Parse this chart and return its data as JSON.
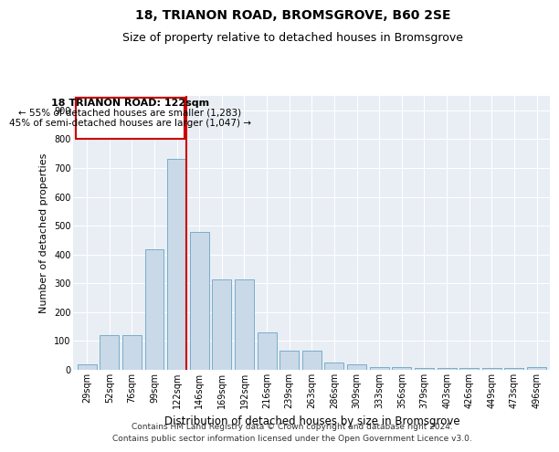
{
  "title": "18, TRIANON ROAD, BROMSGROVE, B60 2SE",
  "subtitle": "Size of property relative to detached houses in Bromsgrove",
  "xlabel": "Distribution of detached houses by size in Bromsgrove",
  "ylabel": "Number of detached properties",
  "categories": [
    "29sqm",
    "52sqm",
    "76sqm",
    "99sqm",
    "122sqm",
    "146sqm",
    "169sqm",
    "192sqm",
    "216sqm",
    "239sqm",
    "263sqm",
    "286sqm",
    "309sqm",
    "333sqm",
    "356sqm",
    "379sqm",
    "403sqm",
    "426sqm",
    "449sqm",
    "473sqm",
    "496sqm"
  ],
  "values": [
    18,
    120,
    120,
    418,
    730,
    478,
    315,
    315,
    130,
    65,
    65,
    25,
    18,
    8,
    8,
    5,
    5,
    5,
    5,
    5,
    8
  ],
  "bar_color": "#c9d9e8",
  "bar_edgecolor": "#7aadca",
  "highlight_index": 4,
  "redline_label": "18 TRIANON ROAD: 122sqm",
  "annotation_line1": "← 55% of detached houses are smaller (1,283)",
  "annotation_line2": "45% of semi-detached houses are larger (1,047) →",
  "vline_color": "#cc0000",
  "annotation_box_edgecolor": "#cc0000",
  "ylim": [
    0,
    950
  ],
  "yticks": [
    0,
    100,
    200,
    300,
    400,
    500,
    600,
    700,
    800,
    900
  ],
  "bg_color": "#e8eef4",
  "footer": "Contains HM Land Registry data © Crown copyright and database right 2024.\nContains public sector information licensed under the Open Government Licence v3.0.",
  "title_fontsize": 10,
  "subtitle_fontsize": 9,
  "xlabel_fontsize": 8.5,
  "ylabel_fontsize": 8,
  "tick_fontsize": 7,
  "annotation_fontsize": 8,
  "footer_fontsize": 6.5
}
